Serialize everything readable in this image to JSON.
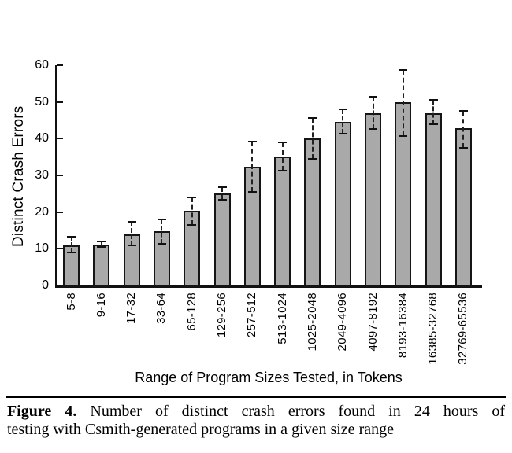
{
  "figure": {
    "caption_label": "Figure 4.",
    "caption_line1_rest": "Number of distinct crash errors found in 24 hours of",
    "caption_line2": "testing with Csmith-generated programs in a given size range"
  },
  "chart_data": {
    "type": "bar",
    "title": "",
    "xlabel": "Range of Program Sizes Tested, in Tokens",
    "ylabel": "Distinct Crash Errors",
    "ylim": [
      0,
      60
    ],
    "yticks": [
      0,
      10,
      20,
      30,
      40,
      50,
      60
    ],
    "grid": false,
    "legend": "none",
    "bar_fill_color": "#a9a9a9",
    "bar_border_color": "#151515",
    "error_bar_style": "dashed-with-caps",
    "categories": [
      "5-8",
      "9-16",
      "17-32",
      "33-64",
      "65-128",
      "129-256",
      "257-512",
      "513-1024",
      "1025-2048",
      "2049-4096",
      "4097-8192",
      "8193-16384",
      "16385-32768",
      "32769-65536"
    ],
    "values": [
      11,
      11.2,
      14,
      14.8,
      20.4,
      25,
      32.4,
      35.2,
      40,
      44.6,
      47,
      50,
      47,
      42.8
    ],
    "error_low": [
      9,
      10.4,
      11,
      11.4,
      16.5,
      23.3,
      25.6,
      31.2,
      34.5,
      41.4,
      42.6,
      40.8,
      44,
      37.5
    ],
    "error_high": [
      13.3,
      11.9,
      17.4,
      17.9,
      24,
      26.8,
      39.2,
      39,
      45.7,
      48,
      51.4,
      58.8,
      50.6,
      47.6
    ]
  }
}
